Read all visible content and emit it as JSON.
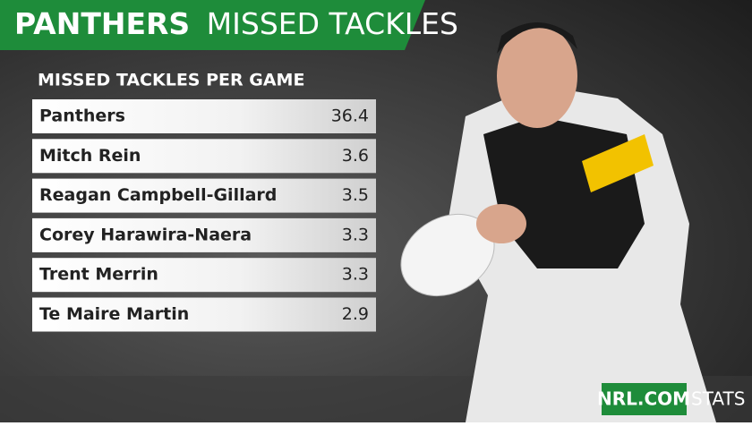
{
  "header": {
    "title_bold": "PANTHERS",
    "title_light": "MISSED TACKLES"
  },
  "table": {
    "title": "MISSED TACKLES PER GAME",
    "rows": [
      [
        "Panthers",
        36.4
      ],
      [
        "Mitch Rein",
        3.6
      ],
      [
        "Reagan Campbell-Gillard",
        3.5
      ],
      [
        "Corey Harawira-Naera",
        3.3
      ],
      [
        "Trent Merrin",
        3.3
      ],
      [
        "Te Maire Martin",
        2.9
      ]
    ]
  },
  "footer": {
    "brand": "NRL.COM",
    "label": "STATS"
  }
}
